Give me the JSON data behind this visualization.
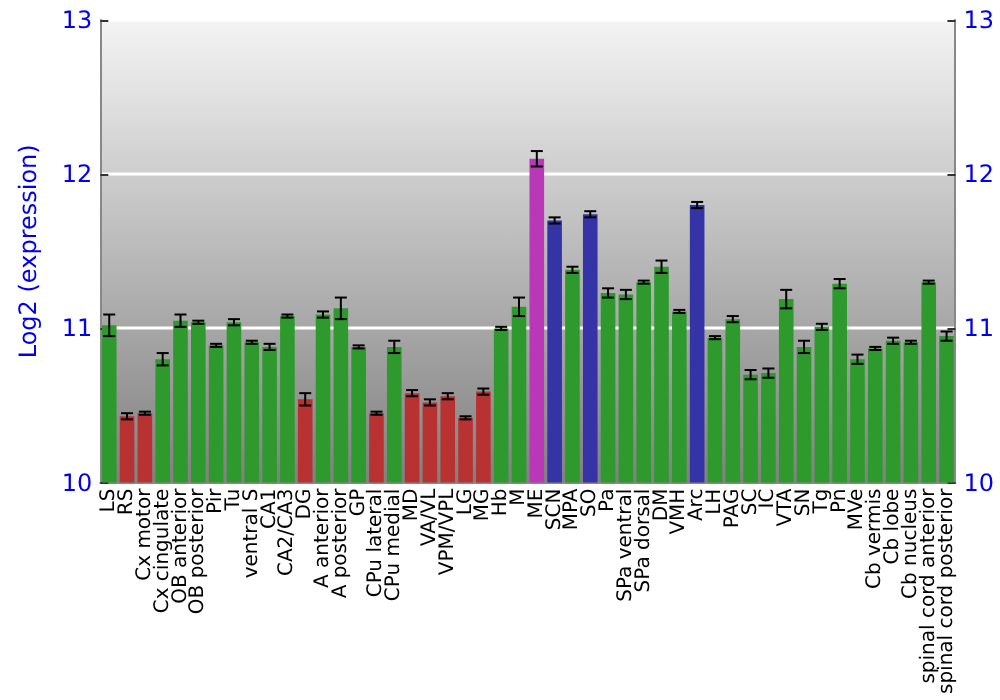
{
  "chart_data": {
    "type": "bar",
    "ylabel": "Log2 (expression)",
    "categories": [
      "LS",
      "RS",
      "Cx motor",
      "Cx cingulate",
      "OB anterior",
      "OB posterior",
      "Pir",
      "Tu",
      "ventral S",
      "CA1",
      "CA2/CA3",
      "DG",
      "A anterior",
      "A posterior",
      "GP",
      "CPu lateral",
      "CPu medial",
      "MD",
      "VA/VL",
      "VPM/VPL",
      "LG",
      "MG",
      "Hb",
      "M",
      "ME",
      "SCN",
      "MPA",
      "SO",
      "Pa",
      "SPa ventral",
      "SPa dorsal",
      "DM",
      "VMH",
      "Arc",
      "LH",
      "PAG",
      "SC",
      "IC",
      "VTA",
      "SN",
      "Tg",
      "Pn",
      "MVe",
      "Cb vermis",
      "Cb lobe",
      "Cb nucleus",
      "spinal cord anterior",
      "spinal cord posterior"
    ],
    "values": [
      11.02,
      10.43,
      10.45,
      10.8,
      11.05,
      11.04,
      10.89,
      11.04,
      10.91,
      10.88,
      11.08,
      10.54,
      11.09,
      11.13,
      10.88,
      10.45,
      10.88,
      10.58,
      10.52,
      10.56,
      10.42,
      10.59,
      11.0,
      11.14,
      12.1,
      11.7,
      11.38,
      11.74,
      11.23,
      11.22,
      11.3,
      11.4,
      11.11,
      11.8,
      10.94,
      11.06,
      10.7,
      10.71,
      11.19,
      10.88,
      11.01,
      11.29,
      10.8,
      10.87,
      10.92,
      10.91,
      11.3,
      10.95
    ],
    "errors": [
      0.07,
      0.02,
      0.01,
      0.04,
      0.04,
      0.01,
      0.01,
      0.02,
      0.01,
      0.02,
      0.01,
      0.04,
      0.02,
      0.07,
      0.01,
      0.01,
      0.04,
      0.02,
      0.02,
      0.02,
      0.01,
      0.02,
      0.01,
      0.06,
      0.05,
      0.02,
      0.02,
      0.02,
      0.03,
      0.03,
      0.01,
      0.04,
      0.01,
      0.02,
      0.01,
      0.02,
      0.03,
      0.03,
      0.06,
      0.04,
      0.02,
      0.03,
      0.03,
      0.01,
      0.02,
      0.01,
      0.01,
      0.03
    ],
    "colors": [
      "#2e9a2e",
      "#b83232",
      "#b83232",
      "#2e9a2e",
      "#2e9a2e",
      "#2e9a2e",
      "#2e9a2e",
      "#2e9a2e",
      "#2e9a2e",
      "#2e9a2e",
      "#2e9a2e",
      "#b83232",
      "#2e9a2e",
      "#2e9a2e",
      "#2e9a2e",
      "#b83232",
      "#2e9a2e",
      "#b83232",
      "#b83232",
      "#b83232",
      "#b83232",
      "#b83232",
      "#2e9a2e",
      "#2e9a2e",
      "#b838b8",
      "#3434a6",
      "#2e9a2e",
      "#3434a6",
      "#2e9a2e",
      "#2e9a2e",
      "#2e9a2e",
      "#2e9a2e",
      "#2e9a2e",
      "#3434a6",
      "#2e9a2e",
      "#2e9a2e",
      "#2e9a2e",
      "#2e9a2e",
      "#2e9a2e",
      "#2e9a2e",
      "#2e9a2e",
      "#2e9a2e",
      "#2e9a2e",
      "#2e9a2e",
      "#2e9a2e",
      "#2e9a2e",
      "#2e9a2e",
      "#2e9a2e"
    ],
    "ylim": [
      10,
      13
    ],
    "yticks": [
      10,
      11,
      12,
      13
    ],
    "y2lim": [
      10,
      13
    ],
    "y2ticks": [
      10,
      11,
      12,
      13
    ],
    "grid": "y"
  }
}
